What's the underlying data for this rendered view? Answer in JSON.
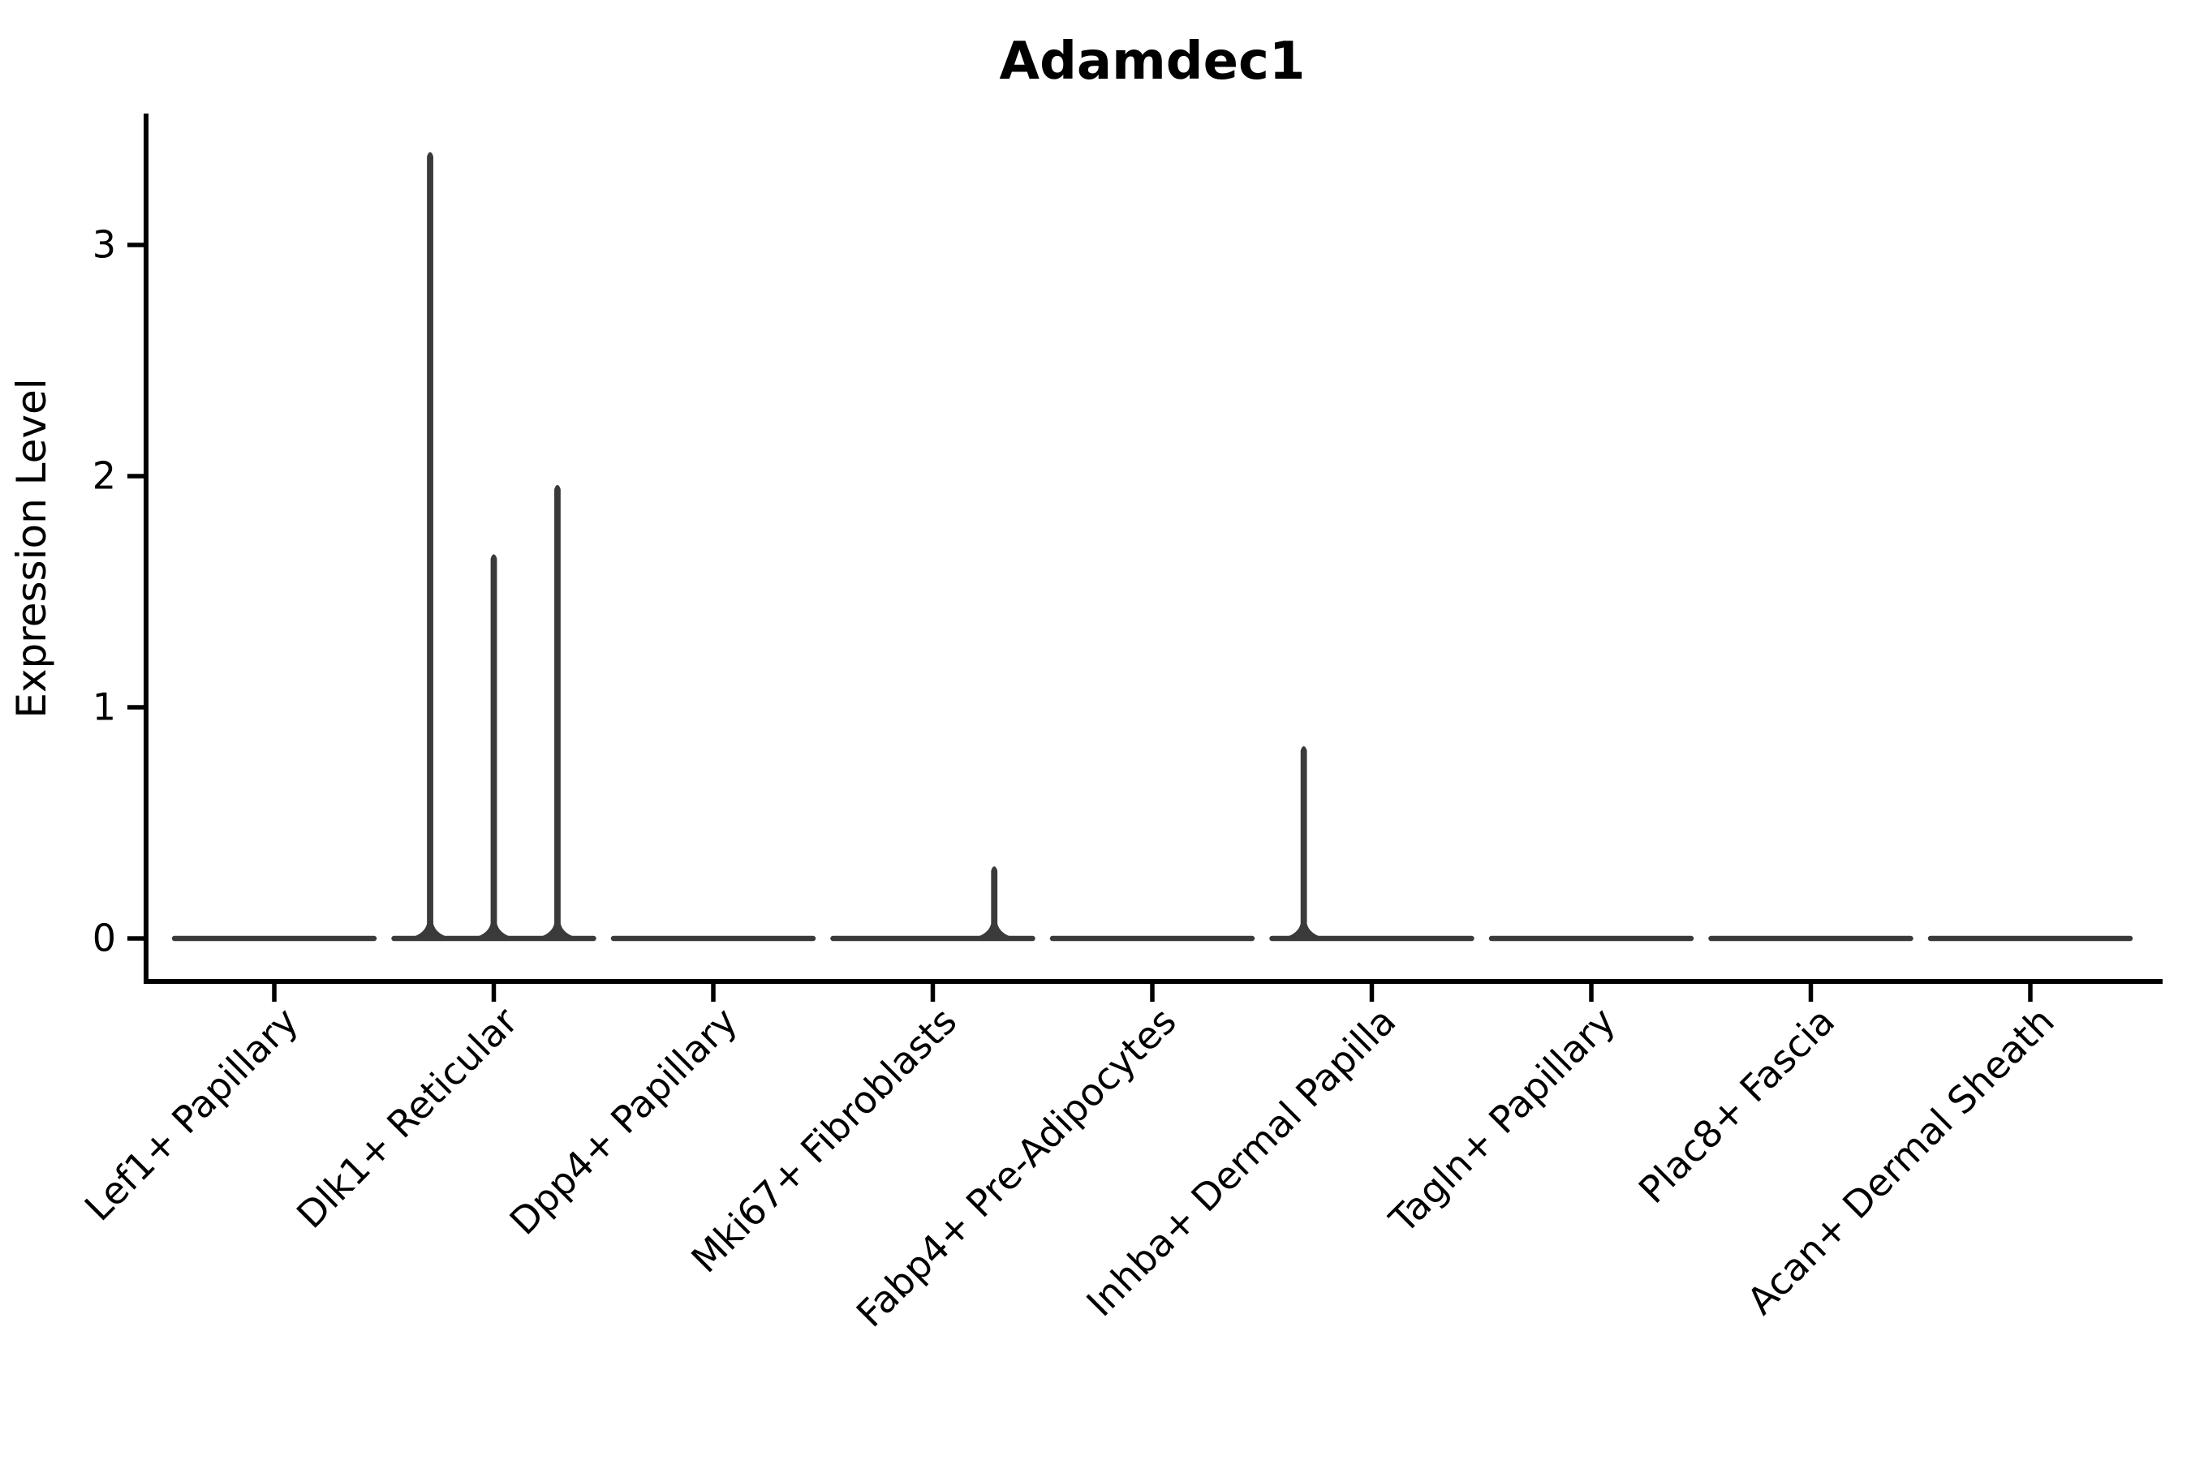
{
  "figure": {
    "title": "Adamdec1",
    "background": "#ffffff"
  },
  "chart_data": {
    "type": "violin",
    "title": "Adamdec1",
    "xlabel": "",
    "ylabel": "Expression Level",
    "yticks": [
      0,
      1,
      2,
      3
    ],
    "ylim": [
      -0.19,
      3.57
    ],
    "grid": false,
    "legend": null,
    "x_tick_label_rotation_deg": 45,
    "categories": [
      "Lef1+ Papillary",
      "Dlk1+ Reticular",
      "Dpp4+ Papillary",
      "Mki67+ Fibroblasts",
      "Fabp4+ Pre-Adipocytes",
      "Inhba+ Dermal Papilla",
      "Tagln+ Papillary",
      "Plac8+ Fascia",
      "Acan+ Dermal Sheath"
    ],
    "violins": [
      {
        "category": "Lef1+ Papillary",
        "baseline_value": 0,
        "spikes": []
      },
      {
        "category": "Dlk1+ Reticular",
        "baseline_value": 0,
        "spikes": [
          {
            "value": 3.4,
            "offset_frac": -0.29
          },
          {
            "value": 1.66,
            "offset_frac": 0.0
          },
          {
            "value": 1.96,
            "offset_frac": 0.29
          }
        ]
      },
      {
        "category": "Dpp4+ Papillary",
        "baseline_value": 0,
        "spikes": []
      },
      {
        "category": "Mki67+ Fibroblasts",
        "baseline_value": 0,
        "spikes": [
          {
            "value": 0.31,
            "offset_frac": 0.28
          }
        ]
      },
      {
        "category": "Fabp4+ Pre-Adipocytes",
        "baseline_value": 0,
        "spikes": []
      },
      {
        "category": "Inhba+ Dermal Papilla",
        "baseline_value": 0,
        "spikes": [
          {
            "value": 0.83,
            "offset_frac": -0.31
          }
        ]
      },
      {
        "category": "Tagln+ Papillary",
        "baseline_value": 0,
        "spikes": []
      },
      {
        "category": "Plac8+ Fascia",
        "baseline_value": 0,
        "spikes": []
      },
      {
        "category": "Acan+ Dermal Sheath",
        "baseline_value": 0,
        "spikes": []
      }
    ],
    "colors": {
      "violin": "#3a3a3a",
      "axis": "#000000",
      "text": "#000000",
      "background": "#ffffff"
    }
  }
}
